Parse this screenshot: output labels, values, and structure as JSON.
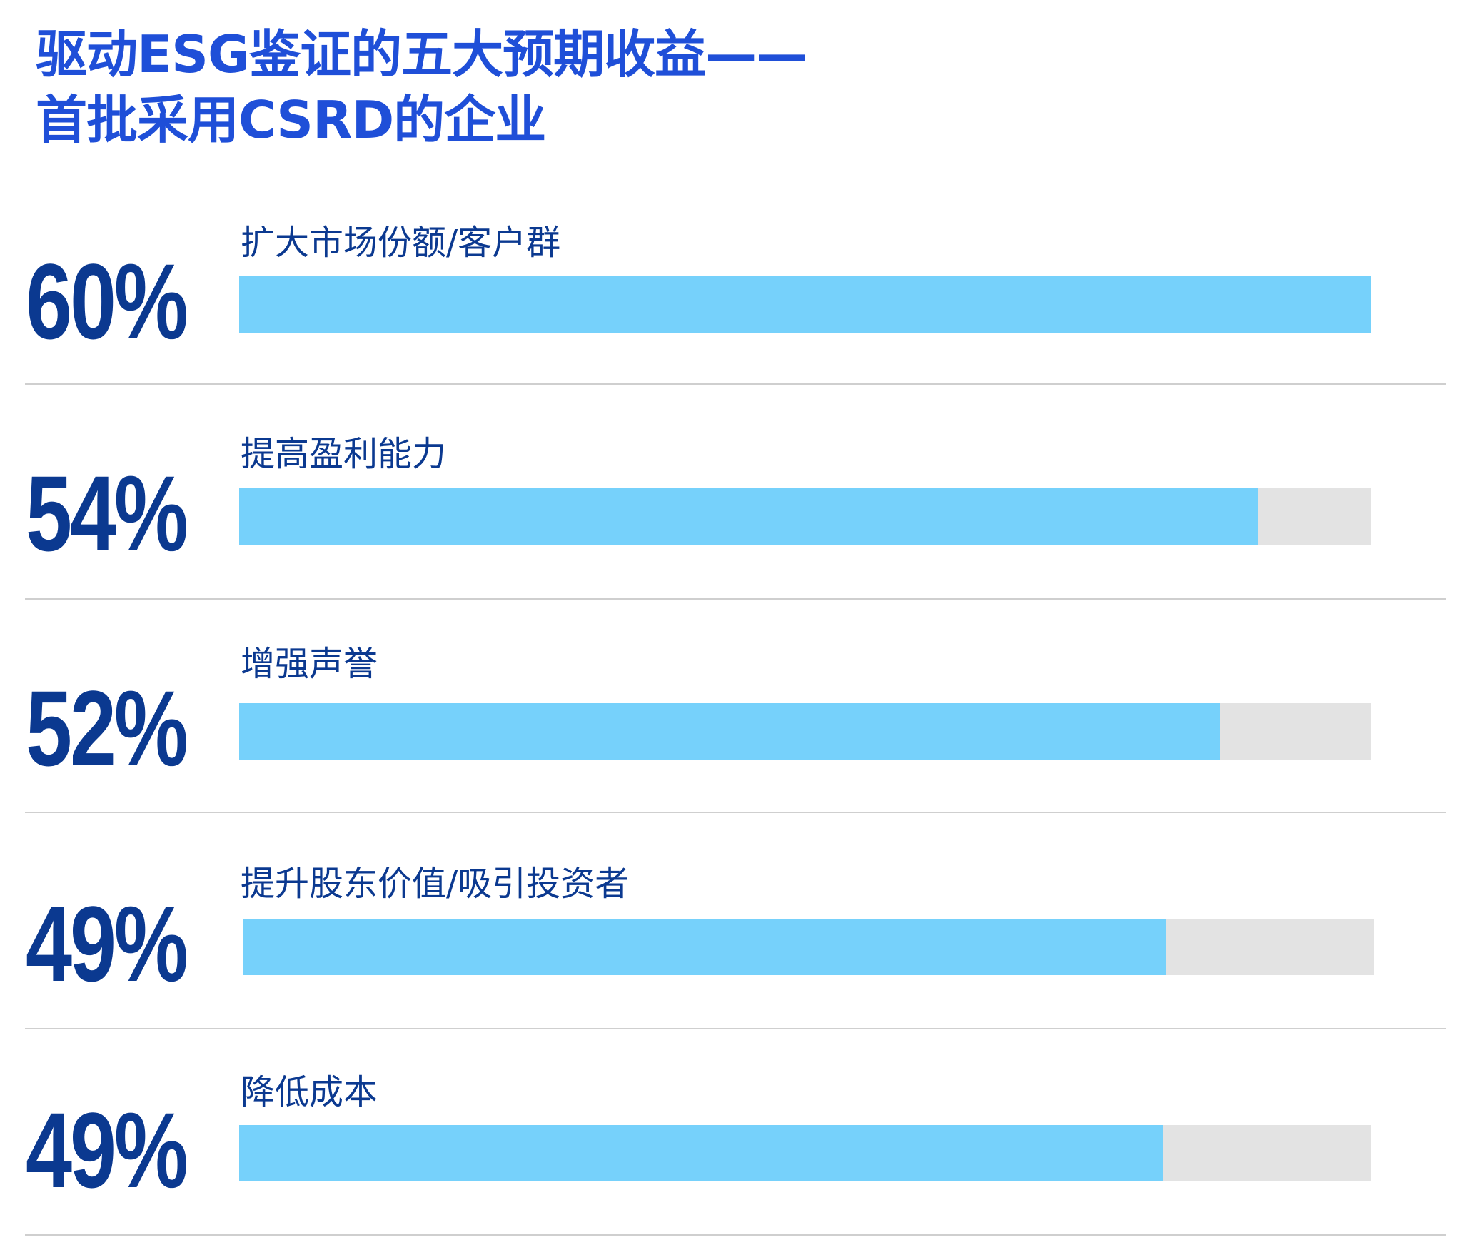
{
  "chart_data": {
    "type": "bar",
    "orientation": "horizontal",
    "title_lines": [
      "驱动ESG鉴证的五大预期收益——",
      "首批采用CSRD的企业"
    ],
    "categories": [
      "扩大市场份额/客户群",
      "提高盈利能力",
      "增强声誉",
      "提升股东价值/吸引投资者",
      "降低成本"
    ],
    "values": [
      60,
      54,
      52,
      49,
      49
    ],
    "value_labels": [
      "60%",
      "54%",
      "52%",
      "49%",
      "49%"
    ],
    "xlim": [
      0,
      60
    ],
    "grid": false,
    "legend": "none",
    "colors": {
      "title": "#1f4fd8",
      "value_text": "#0b3990",
      "bar_fill": "#76d1fb",
      "bar_track": "#e3e3e3",
      "divider": "#cfcfcf"
    }
  }
}
